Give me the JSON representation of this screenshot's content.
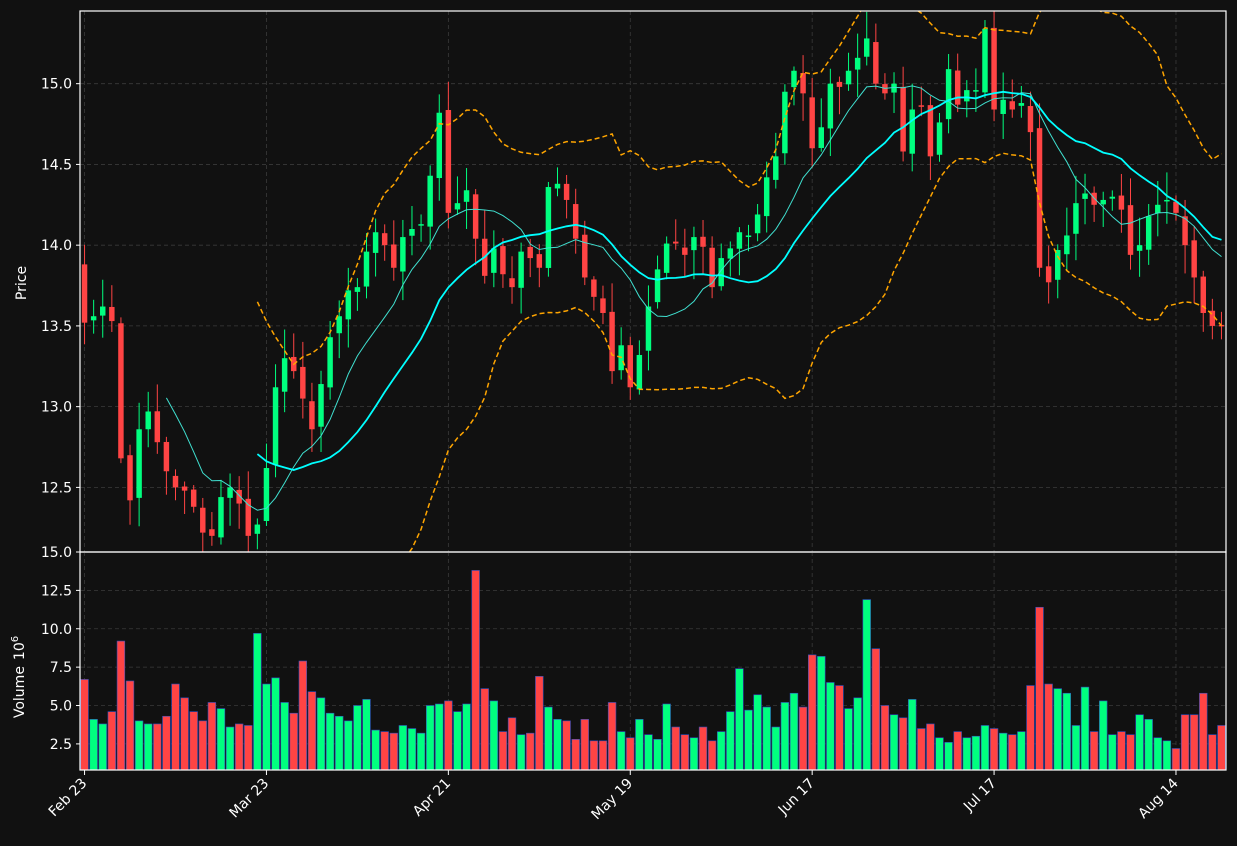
{
  "chart_data": {
    "type": "candlestick",
    "theme": {
      "background": "#111111",
      "up_color": "#00ff7f",
      "down_color": "#ff4444",
      "fast_ma_color": "#40e0d0",
      "slow_ma_color": "#00ffff",
      "bands_color": "#ffa500",
      "grid_color": "#3a3a3a",
      "axis_color": "#ffffff"
    },
    "price_panel": {
      "ylabel": "Price",
      "ylim": [
        12.1,
        15.45
      ],
      "yticks": [
        "12.5",
        "13.0",
        "13.5",
        "14.0",
        "14.5",
        "15.0"
      ],
      "grid": true
    },
    "volume_panel": {
      "ylabel": "Volume",
      "unit_base": "10",
      "unit_exp": "6",
      "ylim": [
        0.8,
        15.0
      ],
      "yticks": [
        "2.5",
        "5.0",
        "7.5",
        "10.0",
        "12.5",
        "15.0"
      ],
      "grid": true
    },
    "x_ticks": [
      {
        "label": "Feb 23",
        "index": 0
      },
      {
        "label": "Mar 23",
        "index": 20
      },
      {
        "label": "Apr 21",
        "index": 40
      },
      {
        "label": "May 19",
        "index": 60
      },
      {
        "label": "Jun 17",
        "index": 80
      },
      {
        "label": "Jul 17",
        "index": 100
      },
      {
        "label": "Aug 14",
        "index": 120
      }
    ],
    "closes": [
      13.52,
      13.56,
      13.62,
      13.53,
      12.68,
      12.42,
      12.86,
      12.97,
      12.78,
      12.6,
      12.5,
      12.48,
      12.38,
      12.22,
      12.2,
      12.44,
      12.5,
      12.4,
      12.2,
      12.27,
      12.62,
      13.12,
      13.3,
      13.22,
      13.05,
      12.86,
      13.14,
      13.43,
      13.56,
      13.72,
      13.74,
      13.96,
      14.08,
      14.0,
      13.86,
      14.05,
      14.1,
      14.13,
      14.43,
      14.82,
      14.2,
      14.26,
      14.34,
      14.04,
      13.81,
      13.98,
      13.82,
      13.74,
      13.96,
      13.92,
      13.86,
      14.36,
      14.38,
      14.28,
      14.04,
      13.8,
      13.68,
      13.58,
      13.22,
      13.38,
      13.12,
      13.32,
      13.62,
      13.85,
      14.01,
      14.01,
      13.94,
      14.05,
      13.99,
      13.74,
      13.92,
      13.98,
      14.08,
      14.06,
      14.19,
      14.42,
      14.55,
      14.95,
      15.08,
      14.94,
      14.6,
      14.73,
      15.0,
      14.98,
      15.08,
      15.16,
      15.28,
      15.0,
      14.94,
      15.0,
      14.58,
      14.84,
      14.86,
      14.55,
      14.76,
      15.09,
      14.87,
      14.96,
      14.96,
      15.34,
      14.84,
      14.9,
      14.84,
      14.88,
      14.7,
      13.86,
      13.77,
      13.97,
      14.06,
      14.26,
      14.32,
      14.25,
      14.28,
      14.3,
      14.22,
      13.94,
      14.0,
      14.18,
      14.25,
      14.28,
      14.2,
      14.0,
      13.8,
      13.58,
      13.5,
      13.5
    ],
    "volumes": [
      6.7,
      4.1,
      3.8,
      4.6,
      9.2,
      6.6,
      4.0,
      3.8,
      3.8,
      4.3,
      6.4,
      5.5,
      4.6,
      4.0,
      5.2,
      4.8,
      3.6,
      3.8,
      3.7,
      9.7,
      6.4,
      6.8,
      5.2,
      4.5,
      7.9,
      5.9,
      5.5,
      4.5,
      4.3,
      4.0,
      5.0,
      5.4,
      3.4,
      3.3,
      3.2,
      3.7,
      3.5,
      3.2,
      5.0,
      5.1,
      5.3,
      4.6,
      5.1,
      13.8,
      6.1,
      5.3,
      3.3,
      4.2,
      3.1,
      3.2,
      6.9,
      4.9,
      4.1,
      4.0,
      2.8,
      4.1,
      2.7,
      2.7,
      5.2,
      3.3,
      2.9,
      4.1,
      3.1,
      2.8,
      5.1,
      3.6,
      3.1,
      2.9,
      3.6,
      2.7,
      3.3,
      4.6,
      7.4,
      4.7,
      5.7,
      4.9,
      3.6,
      5.2,
      5.8,
      4.9,
      8.3,
      8.2,
      6.5,
      6.3,
      4.8,
      5.5,
      11.9,
      8.7,
      5.0,
      4.4,
      4.2,
      5.4,
      3.5,
      3.8,
      2.9,
      2.6,
      3.3,
      2.9,
      3.0,
      3.7,
      3.5,
      3.2,
      3.1,
      3.3,
      6.3,
      11.4,
      6.4,
      6.1,
      5.8,
      3.7,
      6.2,
      3.3,
      5.3,
      3.1,
      3.3,
      3.1,
      4.4,
      4.1,
      2.9,
      2.7,
      2.2,
      4.4,
      4.4,
      5.8,
      3.1,
      3.7
    ]
  }
}
